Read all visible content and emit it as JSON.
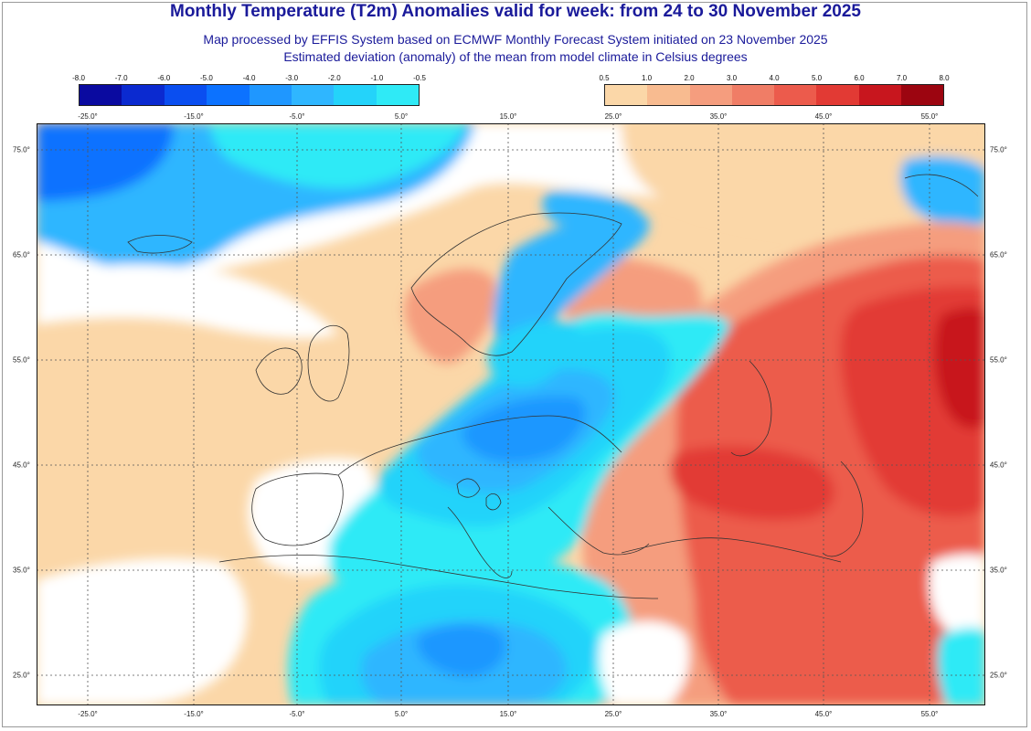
{
  "header": {
    "title": "Monthly Temperature (T2m) Anomalies valid for week: from 24 to 30 November 2025",
    "subtitle_1": "Map processed by EFFIS System based on ECMWF Monthly Forecast System initiated on 23 November 2025",
    "subtitle_2": "Estimated deviation (anomaly) of the mean from model climate in Celsius degrees"
  },
  "legend_negative": {
    "ticks": [
      "-8.0",
      "-7.0",
      "-6.0",
      "-5.0",
      "-4.0",
      "-3.0",
      "-2.0",
      "-1.0",
      "-0.5"
    ],
    "colors": [
      "#0a0aa0",
      "#0b2ad0",
      "#0a4ef0",
      "#0c72ff",
      "#1f97ff",
      "#2fb6ff",
      "#24d3fa",
      "#2feaf6"
    ]
  },
  "legend_positive": {
    "ticks": [
      "0.5",
      "1.0",
      "2.0",
      "3.0",
      "4.0",
      "5.0",
      "6.0",
      "7.0",
      "8.0"
    ],
    "colors": [
      "#fbd7a8",
      "#f8bb90",
      "#f59d7e",
      "#f07d66",
      "#ec5b4c",
      "#e23a34",
      "#c8161e",
      "#9c0510"
    ]
  },
  "map": {
    "longitude_labels": [
      "-25.0°",
      "-15.0°",
      "-5.0°",
      "5.0°",
      "15.0°",
      "25.0°",
      "35.0°",
      "45.0°",
      "55.0°"
    ],
    "latitude_labels": [
      "75.0°",
      "65.0°",
      "55.0°",
      "45.0°",
      "35.0°",
      "25.0°"
    ],
    "colors": {
      "neutral": "#ffffff",
      "light_cyan": "#2feaf6",
      "cyan": "#24d3fa",
      "blue": "#2fb6ff",
      "mid_blue": "#1f97ff",
      "deep_blue": "#0c72ff",
      "peach": "#fbd7a8",
      "salmon": "#f59d7e",
      "orange_red": "#ec5b4c",
      "red": "#e23a34",
      "dark_red": "#c8161e"
    }
  }
}
